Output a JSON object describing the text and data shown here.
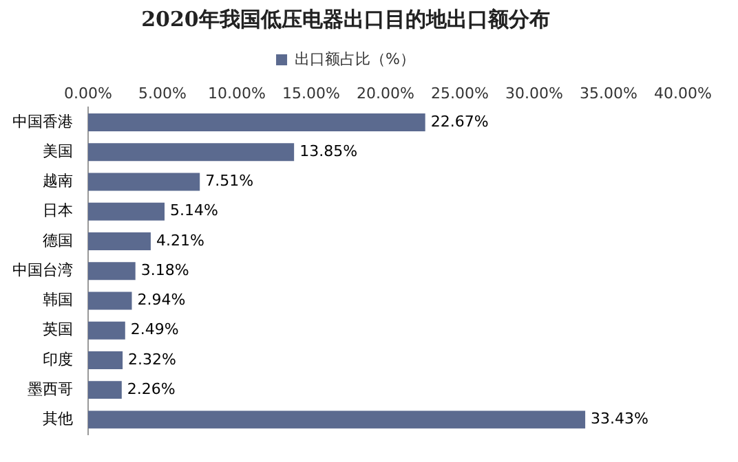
{
  "chart_data": {
    "type": "bar",
    "orientation": "horizontal",
    "title": "2020年我国低压电器出口目的地出口额分布",
    "categories": [
      "中国香港",
      "美国",
      "越南",
      "日本",
      "德国",
      "中国台湾",
      "韩国",
      "英国",
      "印度",
      "墨西哥",
      "其他"
    ],
    "series": [
      {
        "name": "出口额占比（%）",
        "color": "#5b6a8f",
        "values": [
          22.67,
          13.85,
          7.51,
          5.14,
          4.21,
          3.18,
          2.94,
          2.49,
          2.32,
          2.26,
          33.43
        ],
        "value_labels": [
          "22.67%",
          "13.85%",
          "7.51%",
          "5.14%",
          "4.21%",
          "3.18%",
          "2.94%",
          "2.49%",
          "2.32%",
          "2.26%",
          "33.43%"
        ]
      }
    ],
    "xlim": [
      0,
      40
    ],
    "xticks": [
      {
        "value": 0,
        "label": "0.00%"
      },
      {
        "value": 5,
        "label": "5.00%"
      },
      {
        "value": 10,
        "label": "10.00%"
      },
      {
        "value": 15,
        "label": "15.00%"
      },
      {
        "value": 20,
        "label": "20.00%"
      },
      {
        "value": 25,
        "label": "25.00%"
      },
      {
        "value": 30,
        "label": "30.00%"
      },
      {
        "value": 35,
        "label": "35.00%"
      },
      {
        "value": 40,
        "label": "40.00%"
      }
    ],
    "grid": false,
    "legend": "top"
  }
}
